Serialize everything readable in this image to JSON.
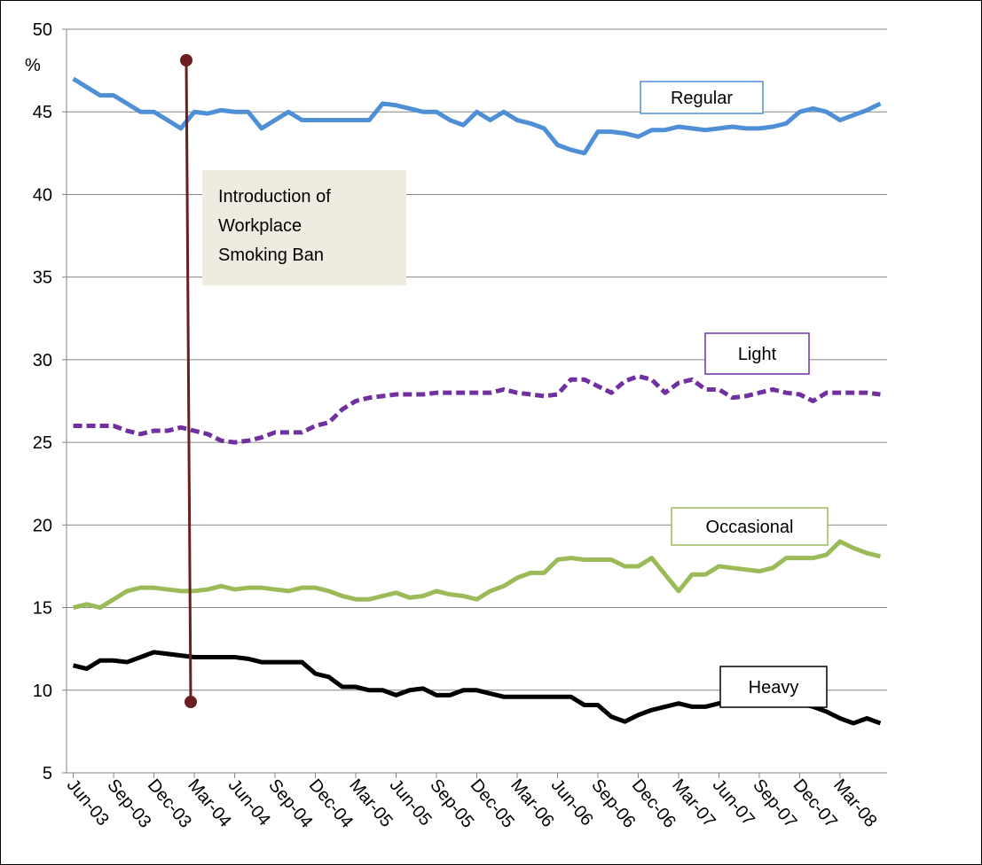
{
  "chart_data": {
    "type": "line",
    "y_label": "%",
    "annotation": [
      "Introduction of",
      "Workplace",
      "Smoking Ban"
    ],
    "categories": [
      "Jun-03",
      null,
      null,
      "Sep-03",
      null,
      null,
      "Dec-03",
      null,
      null,
      "Mar-04",
      null,
      null,
      "Jun-04",
      null,
      null,
      "Sep-04",
      null,
      null,
      "Dec-04",
      null,
      null,
      "Mar-05",
      null,
      null,
      "Jun-05",
      null,
      null,
      "Sep-05",
      null,
      null,
      "Dec-05",
      null,
      null,
      "Mar-06",
      null,
      null,
      "Jun-06",
      null,
      null,
      "Sep-06",
      null,
      null,
      "Dec-06",
      null,
      null,
      "Mar-07",
      null,
      null,
      "Jun-07",
      null,
      null,
      "Sep-07",
      null,
      null,
      "Dec-07",
      null,
      null,
      "Mar-08",
      null,
      null,
      null
    ],
    "series": [
      {
        "name": "Regular",
        "color": "#4f8fd6",
        "style": "solid",
        "values": [
          47,
          46.5,
          46,
          46,
          45.5,
          45,
          45,
          44.5,
          44,
          45,
          44.9,
          45.1,
          45,
          45,
          44,
          44.5,
          45,
          44.5,
          44.5,
          44.5,
          44.5,
          44.5,
          44.5,
          45.5,
          45.4,
          45.2,
          45,
          45,
          44.5,
          44.2,
          45,
          44.5,
          45,
          44.5,
          44.3,
          44,
          43,
          42.7,
          42.5,
          43.8,
          43.8,
          43.7,
          43.5,
          43.9,
          43.9,
          44.1,
          44,
          43.9,
          44,
          44.1,
          44,
          44,
          44.1,
          44.3,
          45,
          45.2,
          45,
          44.5,
          44.8,
          45.1,
          45.5
        ]
      },
      {
        "name": "Light",
        "color": "#7030a0",
        "style": "dashed",
        "values": [
          26,
          26,
          26,
          26,
          25.7,
          25.5,
          25.7,
          25.7,
          25.9,
          25.7,
          25.5,
          25.1,
          25,
          25.1,
          25.3,
          25.6,
          25.6,
          25.6,
          26,
          26.2,
          27,
          27.5,
          27.7,
          27.8,
          27.9,
          27.9,
          27.9,
          28,
          28,
          28,
          28,
          28,
          28.2,
          28,
          27.9,
          27.8,
          27.9,
          28.8,
          28.8,
          28.4,
          28,
          28.7,
          29,
          28.8,
          28,
          28.6,
          28.8,
          28.2,
          28.2,
          27.7,
          27.8,
          28,
          28.2,
          28,
          27.9,
          27.5,
          28,
          28,
          28,
          28,
          27.9
        ]
      },
      {
        "name": "Occasional",
        "color": "#9bbb59",
        "style": "solid",
        "values": [
          15,
          15.2,
          15,
          15.5,
          16,
          16.2,
          16.2,
          16.1,
          16,
          16,
          16.1,
          16.3,
          16.1,
          16.2,
          16.2,
          16.1,
          16,
          16.2,
          16.2,
          16,
          15.7,
          15.5,
          15.5,
          15.7,
          15.9,
          15.6,
          15.7,
          16,
          15.8,
          15.7,
          15.5,
          16,
          16.3,
          16.8,
          17.1,
          17.1,
          17.9,
          18,
          17.9,
          17.9,
          17.9,
          17.5,
          17.5,
          18,
          17,
          16,
          17,
          17,
          17.5,
          17.4,
          17.3,
          17.2,
          17.4,
          18,
          18,
          18,
          18.2,
          19,
          18.6,
          18.3,
          18.1
        ]
      },
      {
        "name": "Heavy",
        "color": "#000000",
        "style": "solid",
        "values": [
          11.5,
          11.3,
          11.8,
          11.8,
          11.7,
          12,
          12.3,
          12.2,
          12.1,
          12,
          12,
          12,
          12,
          11.9,
          11.7,
          11.7,
          11.7,
          11.7,
          11,
          10.8,
          10.2,
          10.2,
          10,
          10,
          9.7,
          10,
          10.1,
          9.7,
          9.7,
          10,
          10,
          9.8,
          9.6,
          9.6,
          9.6,
          9.6,
          9.6,
          9.6,
          9.1,
          9.1,
          8.4,
          8.1,
          8.5,
          8.8,
          9,
          9.2,
          9,
          9,
          9.2,
          9.5,
          9.8,
          9.5,
          9.8,
          9.5,
          9.2,
          9,
          8.7,
          8.3,
          8,
          8.3,
          8
        ]
      }
    ],
    "ylim": [
      5,
      50
    ],
    "yticks": [
      5,
      10,
      15,
      20,
      25,
      30,
      35,
      40,
      45,
      50
    ],
    "grid": true
  }
}
